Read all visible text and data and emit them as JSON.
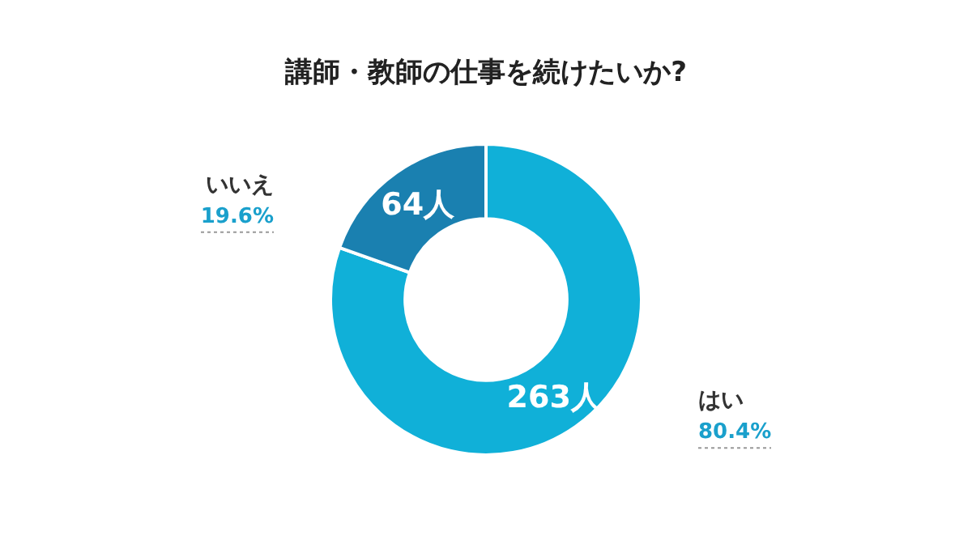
{
  "chart_data": {
    "type": "donut",
    "title": "講師・教師の仕事を続けたいか?",
    "categories": [
      "はい",
      "いいえ"
    ],
    "values": [
      263,
      64
    ],
    "value_labels": [
      "263人",
      "64人"
    ],
    "colors": [
      "#10b0d8",
      "#1a80b0"
    ],
    "annotations": [
      "80.4%",
      "19.6%"
    ]
  }
}
